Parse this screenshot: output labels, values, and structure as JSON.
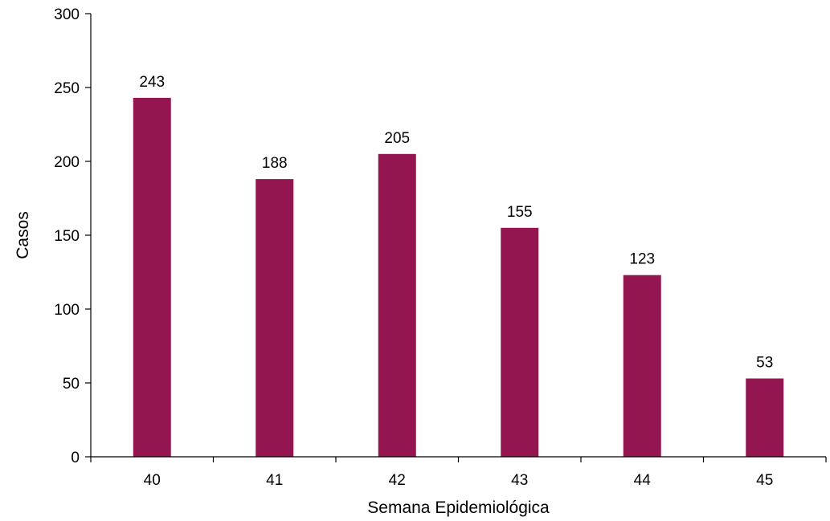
{
  "chart_data": {
    "type": "bar",
    "title": "",
    "xlabel": "Semana Epidemiológica",
    "ylabel": "Casos",
    "categories": [
      "40",
      "41",
      "42",
      "43",
      "44",
      "45"
    ],
    "values": [
      243,
      188,
      205,
      155,
      123,
      53
    ],
    "data_labels": [
      "243",
      "188",
      "205",
      "155",
      "123",
      "53"
    ],
    "yticks": [
      0,
      50,
      100,
      150,
      200,
      250,
      300
    ],
    "ytick_labels": [
      "0",
      "50",
      "100",
      "150",
      "200",
      "250",
      "300"
    ],
    "ylim": [
      0,
      300
    ],
    "grid": false,
    "legend": "none",
    "bar_color": "#941651",
    "axis_color": "#000000"
  }
}
